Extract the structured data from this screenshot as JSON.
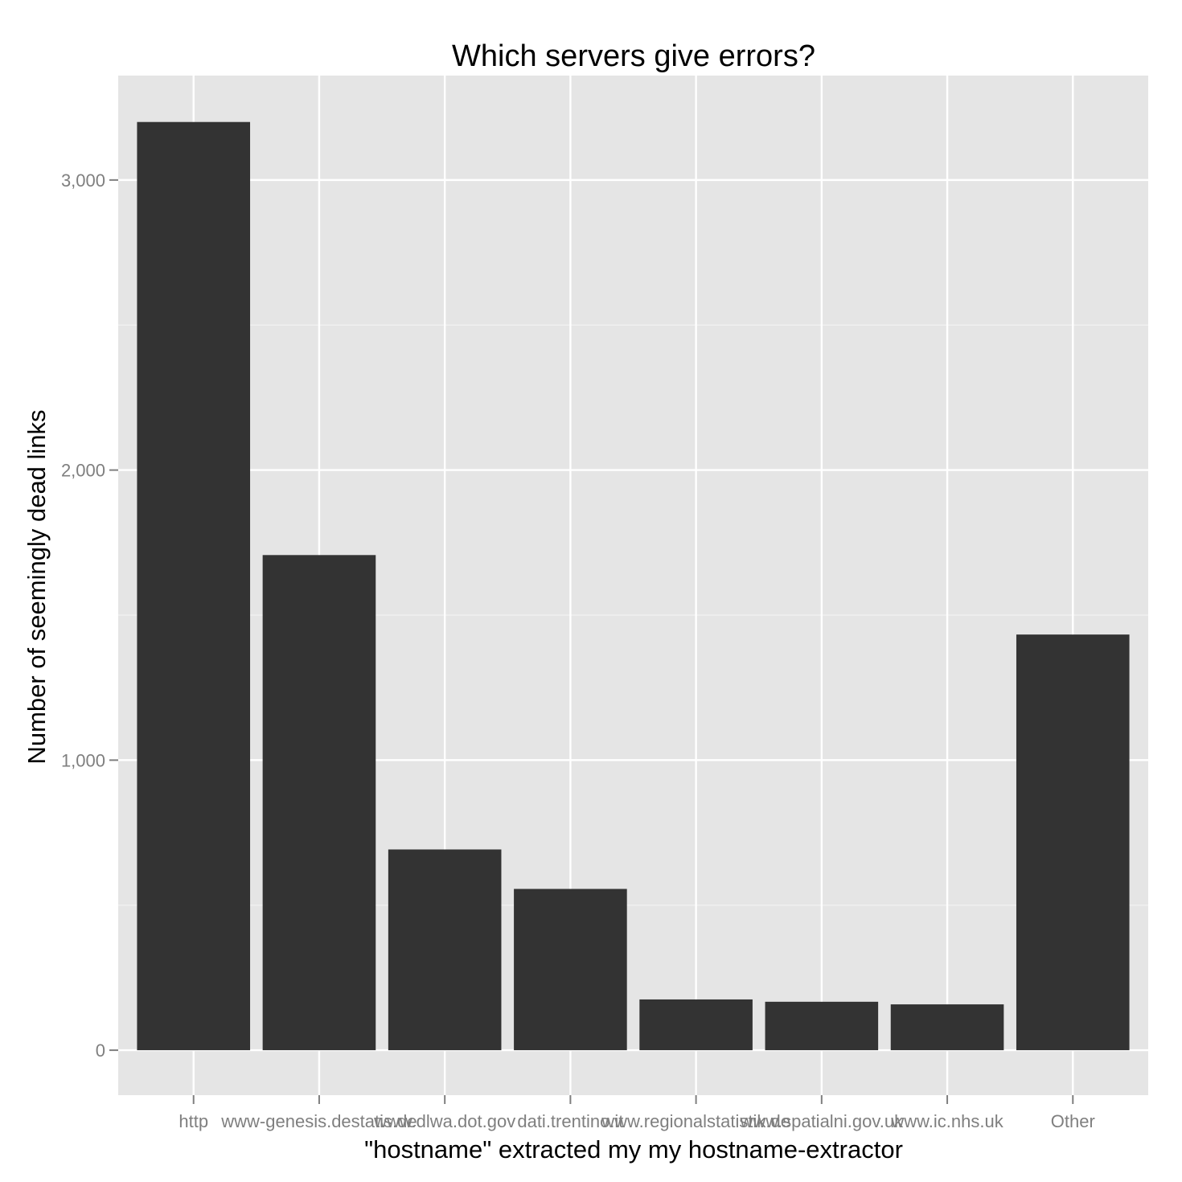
{
  "colors": {
    "panel_background": "#e5e5e5",
    "grid_major": "#ffffff",
    "grid_minor": "#f2f2f2",
    "bar_fill": "#333333",
    "tick_mark": "#7f7f7f",
    "tick_label": "#7f7f7f",
    "text": "#000000"
  },
  "chart_data": {
    "type": "bar",
    "title": "Which servers give errors?",
    "xlabel": "\"hostname\" extracted my my hostname-extractor",
    "ylabel": "Number of seemingly dead links",
    "categories": [
      "http",
      "www-genesis.destatis.de",
      "www.dlwa.dot.gov",
      "dati.trentino.it",
      "www.regionalstatistik.de",
      "www.spatialni.gov.uk",
      "www.ic.nhs.uk",
      "Other"
    ],
    "values": [
      3200,
      1707,
      692,
      556,
      175,
      167,
      158,
      1433
    ],
    "ylim": [
      -155,
      3360
    ],
    "y_ticks": [
      0,
      1000,
      2000,
      3000
    ],
    "y_tick_labels": [
      "0",
      "1,000",
      "2,000",
      "3,000"
    ],
    "y_minor_ticks": [
      500,
      1500,
      2500
    ],
    "grid": true,
    "legend": "none"
  }
}
